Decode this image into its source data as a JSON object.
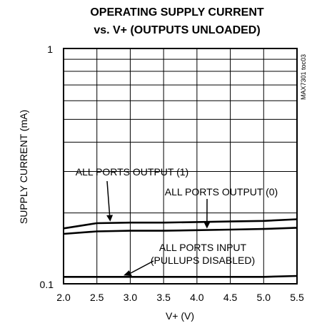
{
  "chart_data": {
    "type": "line",
    "title_lines": [
      "OPERATING SUPPLY CURRENT",
      "vs. V+ (OUTPUTS UNLOADED)"
    ],
    "xlabel": "V+ (V)",
    "ylabel": "SUPPLY CURRENT (mA)",
    "x_scale": "linear",
    "y_scale": "log",
    "xlim": [
      2.0,
      5.5
    ],
    "ylim": [
      0.1,
      1
    ],
    "x_ticks": [
      "2.0",
      "2.5",
      "3.0",
      "3.5",
      "4.0",
      "4.5",
      "5.0",
      "5.5"
    ],
    "y_ticks": [
      "1",
      "0.1"
    ],
    "grid": true,
    "code_label": "MAX7301 toc03",
    "series": [
      {
        "name": "ALL PORTS OUTPUT (1)",
        "x": [
          2.0,
          2.5,
          3.0,
          3.5,
          4.0,
          4.5,
          5.0,
          5.5
        ],
        "y": [
          0.172,
          0.181,
          0.182,
          0.182,
          0.183,
          0.184,
          0.185,
          0.188
        ]
      },
      {
        "name": "ALL PORTS OUTPUT (0)",
        "x": [
          2.0,
          2.5,
          3.0,
          3.5,
          4.0,
          4.5,
          5.0,
          5.5
        ],
        "y": [
          0.163,
          0.167,
          0.168,
          0.168,
          0.169,
          0.17,
          0.171,
          0.173
        ]
      },
      {
        "name": "ALL PORTS INPUT (PULLUPS DISABLED)",
        "x": [
          2.0,
          2.5,
          3.0,
          3.5,
          4.0,
          4.5,
          5.0,
          5.5
        ],
        "y": [
          0.107,
          0.107,
          0.107,
          0.107,
          0.107,
          0.107,
          0.107,
          0.108
        ]
      }
    ],
    "annotations": [
      {
        "lines": [
          "ALL PORTS OUTPUT (1)"
        ],
        "series_index": 0,
        "arrow_x": 2.7
      },
      {
        "lines": [
          "ALL PORTS OUTPUT (0)"
        ],
        "series_index": 1,
        "arrow_x": 4.15
      },
      {
        "lines": [
          "ALL PORTS INPUT",
          "(PULLUPS DISABLED)"
        ],
        "series_index": 2,
        "arrow_x": 2.9
      }
    ]
  }
}
